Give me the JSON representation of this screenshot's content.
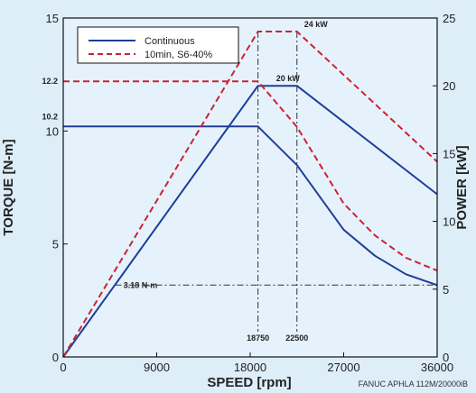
{
  "chart_data": {
    "type": "line",
    "xlabel": "SPEED [rpm]",
    "ylabel_left": "TORQUE [N-m]",
    "ylabel_right": "POWER [kW]",
    "xlim": [
      0,
      36000
    ],
    "ylim_left": [
      0,
      15
    ],
    "ylim_right": [
      0,
      25
    ],
    "x_ticks": [
      0,
      9000,
      18000,
      27000,
      36000
    ],
    "y_left_ticks": [
      0,
      5,
      10,
      15
    ],
    "y_right_ticks": [
      0,
      5,
      10,
      15,
      20,
      25
    ],
    "grid": false,
    "legend_position": "top-left",
    "legend": [
      "Continuous",
      "10min, S6-40%"
    ],
    "colors": {
      "continuous": "#1f3d99",
      "s6": "#cc2233",
      "background": "#ddeef9"
    },
    "series": [
      {
        "name": "Continuous",
        "axis": "left",
        "style": "solid",
        "points": [
          [
            0,
            10.2
          ],
          [
            18750,
            10.2
          ],
          [
            22500,
            8.49
          ],
          [
            27000,
            5.63
          ],
          [
            30000,
            4.48
          ],
          [
            33000,
            3.66
          ],
          [
            36000,
            3.18
          ]
        ]
      },
      {
        "name": "Continuous",
        "axis": "right",
        "style": "solid",
        "points": [
          [
            0,
            0
          ],
          [
            18750,
            20
          ],
          [
            22500,
            20
          ],
          [
            36000,
            12
          ]
        ]
      },
      {
        "name": "10min, S6-40%",
        "axis": "left",
        "style": "dashed",
        "points": [
          [
            0,
            12.2
          ],
          [
            18750,
            12.2
          ],
          [
            22500,
            10.18
          ],
          [
            27000,
            6.79
          ],
          [
            30000,
            5.38
          ],
          [
            33000,
            4.39
          ],
          [
            36000,
            3.82
          ]
        ]
      },
      {
        "name": "10min, S6-40%",
        "axis": "right",
        "style": "dashed",
        "points": [
          [
            0,
            0
          ],
          [
            18750,
            24
          ],
          [
            22500,
            24
          ],
          [
            36000,
            14.4
          ]
        ]
      }
    ],
    "annotations": {
      "torque_122": "12.2",
      "torque_102": "10.2",
      "power_24": "24 kW",
      "power_20": "20 kW",
      "torque_318": "3.18 N-m",
      "speed_18750": "18750",
      "speed_22500": "22500"
    },
    "reference_lines": {
      "vertical_x": [
        18750,
        22500
      ],
      "horizontal_torque": 3.18,
      "vertical_top_power": 24
    },
    "credit": "FANUC APHLA 112M/20000iB"
  }
}
